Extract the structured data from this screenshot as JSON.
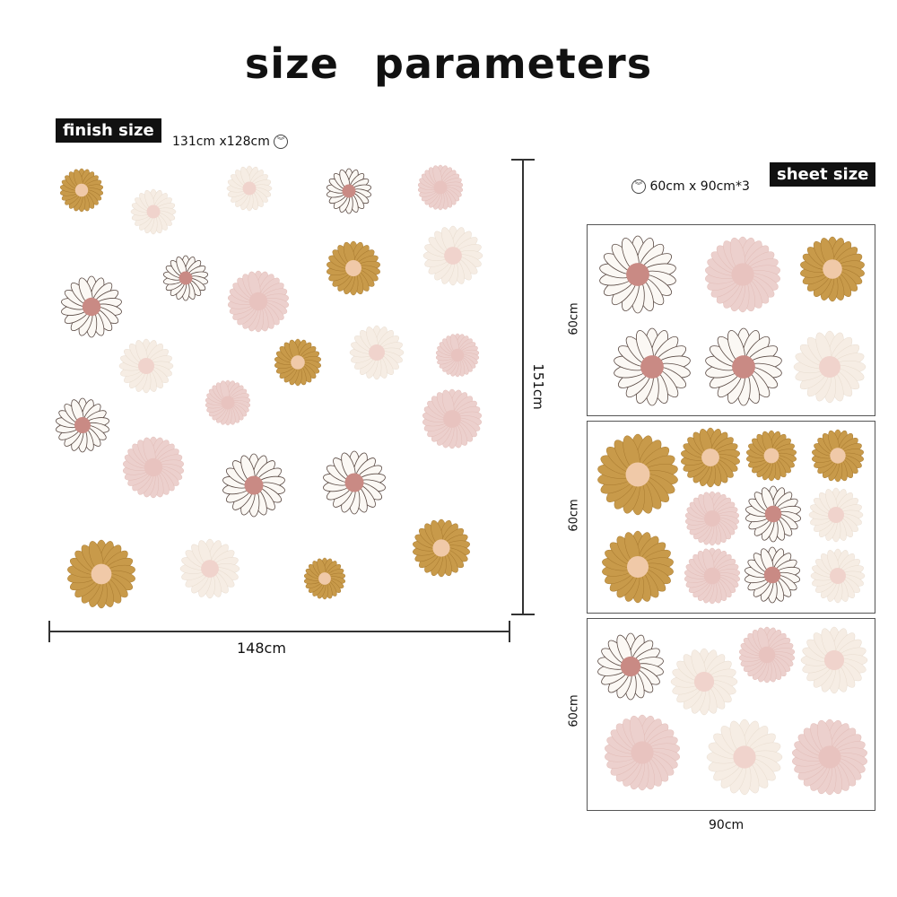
{
  "title": "size   parameters",
  "finish": {
    "tag": "finish size",
    "size": "131cm x128cm",
    "icon": "chevron-down-circle-icon"
  },
  "sheet": {
    "tag": "sheet size",
    "size": "60cm x 90cm*3",
    "icon": "chevron-down-circle-icon"
  },
  "dimensions": {
    "height": "151cm",
    "width": "148cm",
    "sheet_height": "60cm",
    "sheet_width": "90cm"
  },
  "colors": {
    "mustard": "#c89a4a",
    "pink": "#ecd0cd",
    "white_petal": "#fbf8f4",
    "center_rose": "#c98a84",
    "cream": "#f6ede4"
  }
}
